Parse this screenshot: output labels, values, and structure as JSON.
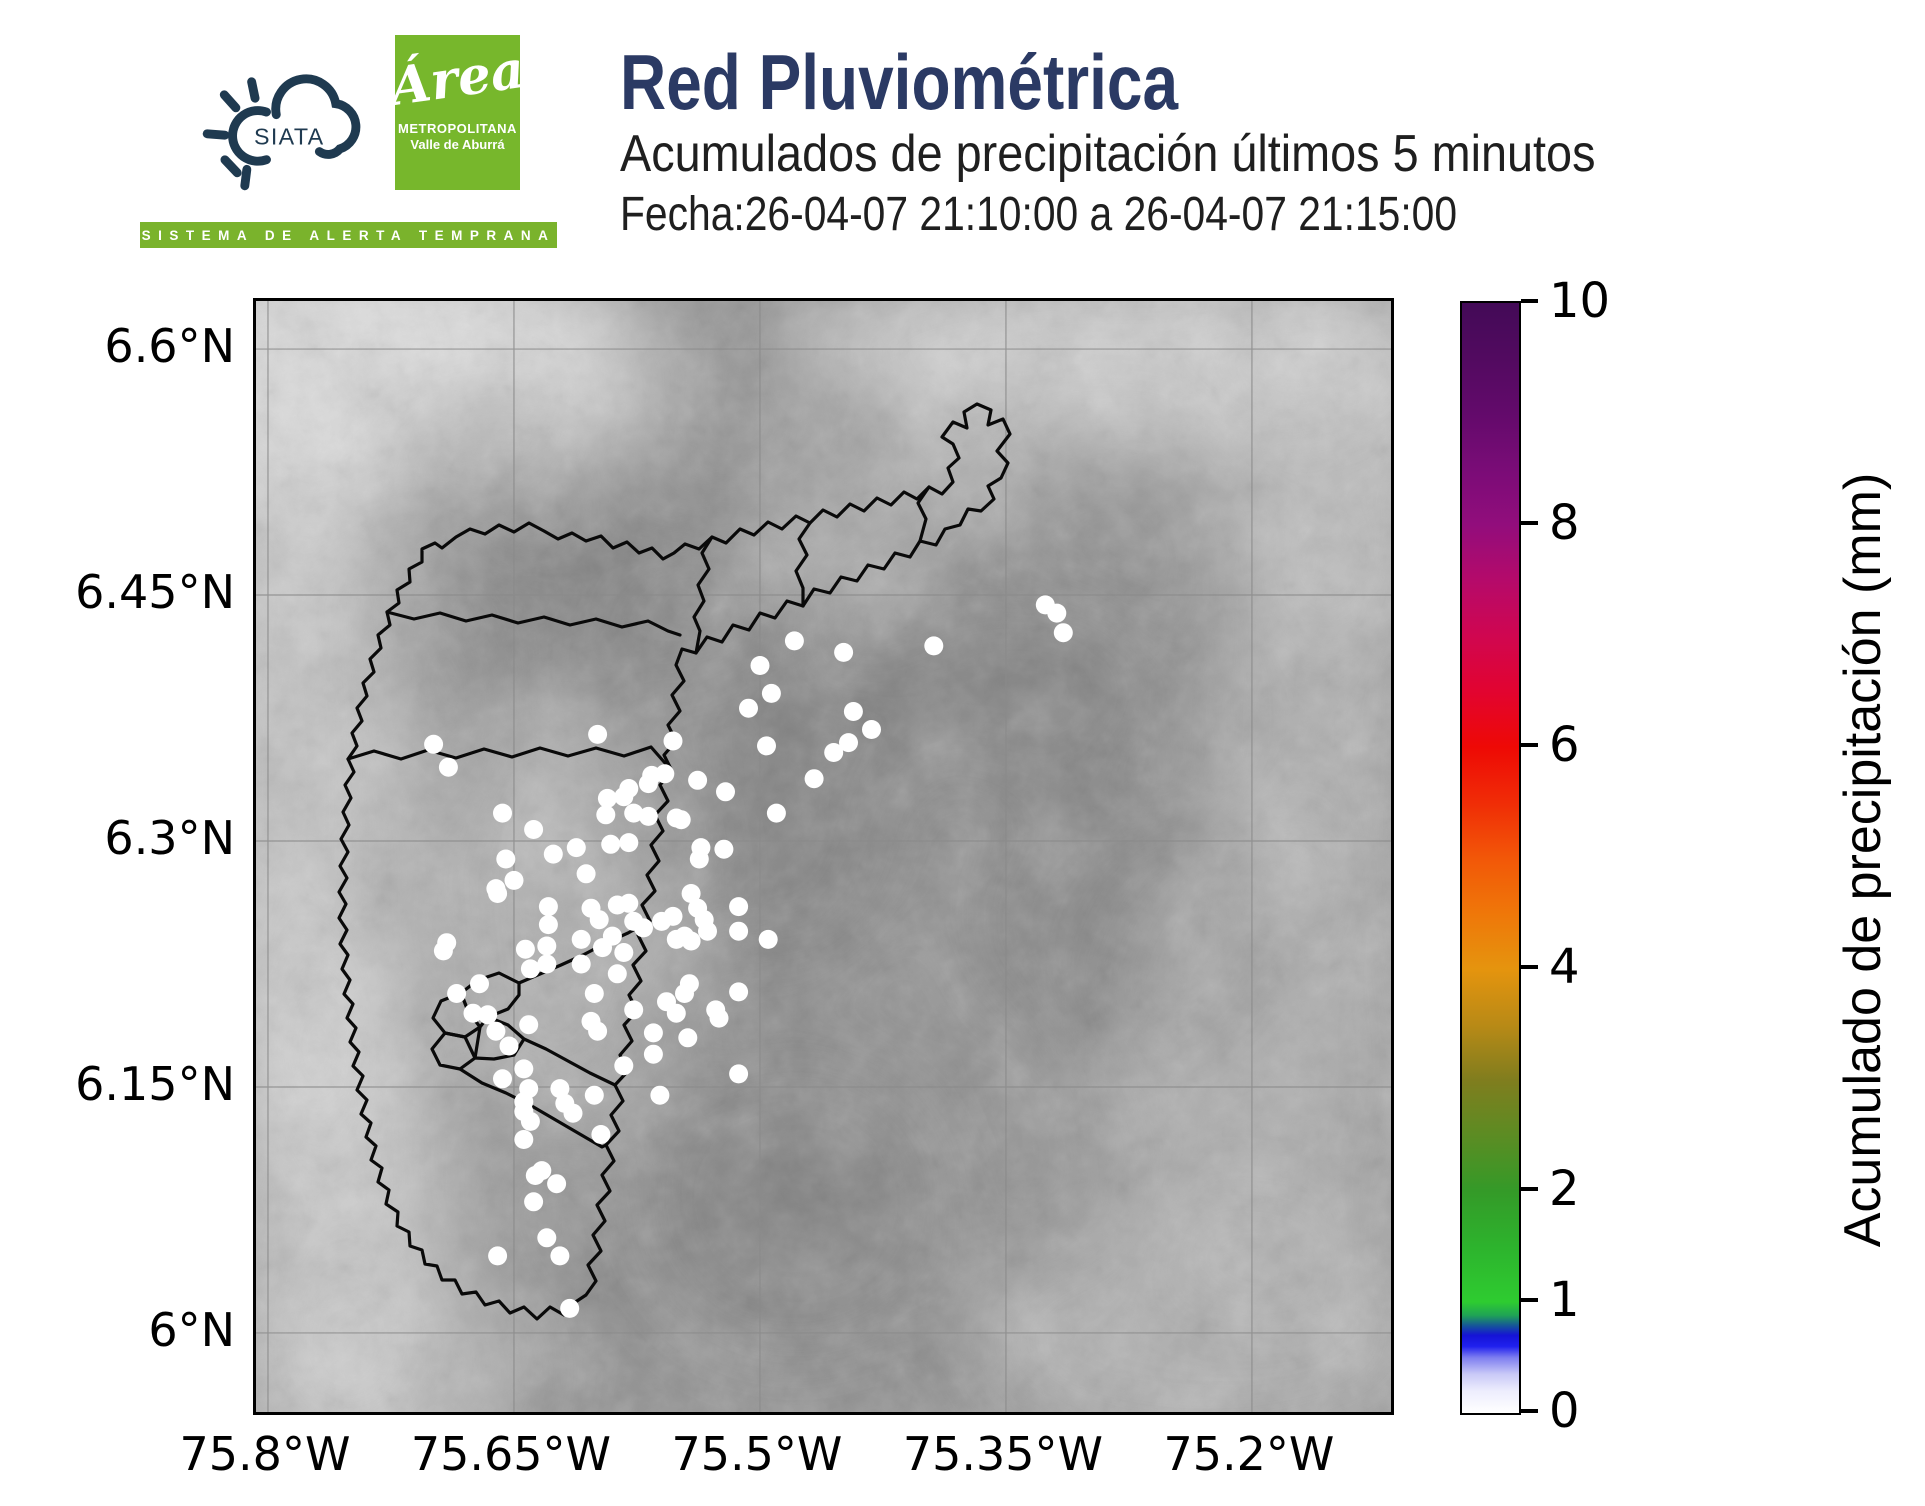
{
  "header": {
    "title": "Red Pluviométrica",
    "subtitle": "Acumulados de precipitación últimos 5 minutos",
    "date_line": "Fecha:26-04-07 21:10:00 a 26-04-07 21:15:00",
    "brand": {
      "siata_label": "SIATA",
      "tagline": "SISTEMA DE ALERTA TEMPRANA",
      "amva_script": "Área",
      "amva_line2": "METROPOLITANA",
      "amva_line3": "Valle de Aburrá"
    }
  },
  "colors": {
    "title_navy": "#2b3a64",
    "logo_navy": "#1f3a50",
    "brand_green": "#77b72c",
    "tagline_green": "#7ab32c",
    "boundary_black": "#0a0a0a",
    "grid_gray": "#8a8a8a",
    "station_dot": "#ffffff",
    "terrain_base": "#909090"
  },
  "chart_data": {
    "type": "scatter",
    "title": "Red Pluviométrica",
    "xlabel": "",
    "ylabel": "",
    "map": {
      "xlim": [
        -75.8073,
        -75.1152
      ],
      "ylim": [
        5.9518,
        6.6293
      ],
      "grid": true,
      "x_ticks": [
        {
          "v": -75.8,
          "label": "75.8°W"
        },
        {
          "v": -75.65,
          "label": "75.65°W"
        },
        {
          "v": -75.5,
          "label": "75.5°W"
        },
        {
          "v": -75.35,
          "label": "75.35°W"
        },
        {
          "v": -75.2,
          "label": "75.2°W"
        }
      ],
      "y_ticks": [
        {
          "v": 6.6,
          "label": "6.6°N"
        },
        {
          "v": 6.45,
          "label": "6.45°N"
        },
        {
          "v": 6.3,
          "label": "6.3°N"
        },
        {
          "v": 6.15,
          "label": "6.15°N"
        },
        {
          "v": 6.0,
          "label": "6°N"
        }
      ]
    },
    "colorbar": {
      "label": "Acumulado de precipitación (mm)",
      "min": 0,
      "max": 10,
      "ticks": [
        0,
        1,
        2,
        4,
        6,
        8,
        10
      ],
      "stops": [
        {
          "v": 0.0,
          "c": "#ffffff"
        },
        {
          "v": 0.2,
          "c": "#ededfd"
        },
        {
          "v": 0.35,
          "c": "#c9c9f7"
        },
        {
          "v": 0.5,
          "c": "#7d7df0"
        },
        {
          "v": 0.6,
          "c": "#2020ee"
        },
        {
          "v": 0.7,
          "c": "#1513d6"
        },
        {
          "v": 0.78,
          "c": "#15509e"
        },
        {
          "v": 0.88,
          "c": "#1fa355"
        },
        {
          "v": 1.0,
          "c": "#2ecc30"
        },
        {
          "v": 1.5,
          "c": "#2db32d"
        },
        {
          "v": 2.0,
          "c": "#349a28"
        },
        {
          "v": 2.5,
          "c": "#5c8c23"
        },
        {
          "v": 3.0,
          "c": "#807d1e"
        },
        {
          "v": 3.5,
          "c": "#b98a16"
        },
        {
          "v": 4.0,
          "c": "#e5940e"
        },
        {
          "v": 4.5,
          "c": "#ef7709"
        },
        {
          "v": 5.0,
          "c": "#f25708"
        },
        {
          "v": 5.5,
          "c": "#f02c06"
        },
        {
          "v": 6.0,
          "c": "#ee0905"
        },
        {
          "v": 6.5,
          "c": "#e20430"
        },
        {
          "v": 7.0,
          "c": "#d00650"
        },
        {
          "v": 7.5,
          "c": "#b50a6a"
        },
        {
          "v": 8.0,
          "c": "#920d7c"
        },
        {
          "v": 8.5,
          "c": "#7a0c77"
        },
        {
          "v": 9.0,
          "c": "#630a6b"
        },
        {
          "v": 9.5,
          "c": "#520a60"
        },
        {
          "v": 10.0,
          "c": "#430a57"
        }
      ]
    },
    "stations": {
      "value_mm": 0,
      "points": [
        [
          -75.326,
          6.444
        ],
        [
          -75.319,
          6.439
        ],
        [
          -75.315,
          6.427
        ],
        [
          -75.394,
          6.419
        ],
        [
          -75.479,
          6.422
        ],
        [
          -75.449,
          6.415
        ],
        [
          -75.5,
          6.407
        ],
        [
          -75.493,
          6.39
        ],
        [
          -75.507,
          6.381
        ],
        [
          -75.443,
          6.379
        ],
        [
          -75.432,
          6.368
        ],
        [
          -75.446,
          6.36
        ],
        [
          -75.455,
          6.354
        ],
        [
          -75.496,
          6.358
        ],
        [
          -75.467,
          6.338
        ],
        [
          -75.521,
          6.33
        ],
        [
          -75.538,
          6.337
        ],
        [
          -75.49,
          6.317
        ],
        [
          -75.548,
          6.313
        ],
        [
          -75.536,
          6.296
        ],
        [
          -75.522,
          6.295
        ],
        [
          -75.537,
          6.289
        ],
        [
          -75.599,
          6.365
        ],
        [
          -75.553,
          6.361
        ],
        [
          -75.566,
          6.34
        ],
        [
          -75.558,
          6.341
        ],
        [
          -75.58,
          6.332
        ],
        [
          -75.593,
          6.326
        ],
        [
          -75.594,
          6.316
        ],
        [
          -75.577,
          6.317
        ],
        [
          -75.568,
          6.315
        ],
        [
          -75.699,
          6.359
        ],
        [
          -75.69,
          6.345
        ],
        [
          -75.657,
          6.317
        ],
        [
          -75.638,
          6.307
        ],
        [
          -75.568,
          6.335
        ],
        [
          -75.583,
          6.327
        ],
        [
          -75.551,
          6.314
        ],
        [
          -75.591,
          6.298
        ],
        [
          -75.58,
          6.299
        ],
        [
          -75.612,
          6.296
        ],
        [
          -75.606,
          6.28
        ],
        [
          -75.626,
          6.292
        ],
        [
          -75.661,
          6.271
        ],
        [
          -75.655,
          6.289
        ],
        [
          -75.65,
          6.276
        ],
        [
          -75.691,
          6.238
        ],
        [
          -75.66,
          6.268
        ],
        [
          -75.629,
          6.26
        ],
        [
          -75.629,
          6.249
        ],
        [
          -75.603,
          6.259
        ],
        [
          -75.598,
          6.252
        ],
        [
          -75.587,
          6.261
        ],
        [
          -75.58,
          6.262
        ],
        [
          -75.577,
          6.251
        ],
        [
          -75.571,
          6.247
        ],
        [
          -75.56,
          6.251
        ],
        [
          -75.553,
          6.254
        ],
        [
          -75.542,
          6.268
        ],
        [
          -75.538,
          6.259
        ],
        [
          -75.534,
          6.252
        ],
        [
          -75.532,
          6.245
        ],
        [
          -75.513,
          6.26
        ],
        [
          -75.513,
          6.245
        ],
        [
          -75.609,
          6.24
        ],
        [
          -75.596,
          6.235
        ],
        [
          -75.59,
          6.242
        ],
        [
          -75.583,
          6.232
        ],
        [
          -75.551,
          6.24
        ],
        [
          -75.546,
          6.242
        ],
        [
          -75.542,
          6.239
        ],
        [
          -75.495,
          6.24
        ],
        [
          -75.693,
          6.233
        ],
        [
          -75.643,
          6.234
        ],
        [
          -75.63,
          6.236
        ],
        [
          -75.64,
          6.222
        ],
        [
          -75.63,
          6.225
        ],
        [
          -75.609,
          6.225
        ],
        [
          -75.587,
          6.219
        ],
        [
          -75.543,
          6.213
        ],
        [
          -75.546,
          6.207
        ],
        [
          -75.513,
          6.208
        ],
        [
          -75.601,
          6.207
        ],
        [
          -75.685,
          6.207
        ],
        [
          -75.671,
          6.213
        ],
        [
          -75.675,
          6.195
        ],
        [
          -75.666,
          6.194
        ],
        [
          -75.661,
          6.184
        ],
        [
          -75.577,
          6.197
        ],
        [
          -75.565,
          6.183
        ],
        [
          -75.557,
          6.202
        ],
        [
          -75.551,
          6.195
        ],
        [
          -75.603,
          6.19
        ],
        [
          -75.599,
          6.184
        ],
        [
          -75.641,
          6.188
        ],
        [
          -75.653,
          6.175
        ],
        [
          -75.644,
          6.161
        ],
        [
          -75.657,
          6.155
        ],
        [
          -75.641,
          6.149
        ],
        [
          -75.583,
          6.163
        ],
        [
          -75.565,
          6.17
        ],
        [
          -75.527,
          6.197
        ],
        [
          -75.525,
          6.192
        ],
        [
          -75.544,
          6.18
        ],
        [
          -75.561,
          6.145
        ],
        [
          -75.513,
          6.158
        ],
        [
          -75.622,
          6.149
        ],
        [
          -75.619,
          6.14
        ],
        [
          -75.614,
          6.134
        ],
        [
          -75.601,
          6.145
        ],
        [
          -75.644,
          6.141
        ],
        [
          -75.644,
          6.135
        ],
        [
          -75.64,
          6.129
        ],
        [
          -75.597,
          6.121
        ],
        [
          -75.644,
          6.118
        ],
        [
          -75.637,
          6.096
        ],
        [
          -75.633,
          6.099
        ],
        [
          -75.624,
          6.091
        ],
        [
          -75.638,
          6.08
        ],
        [
          -75.63,
          6.058
        ],
        [
          -75.622,
          6.047
        ],
        [
          -75.66,
          6.047
        ],
        [
          -75.616,
          6.015
        ]
      ]
    }
  }
}
